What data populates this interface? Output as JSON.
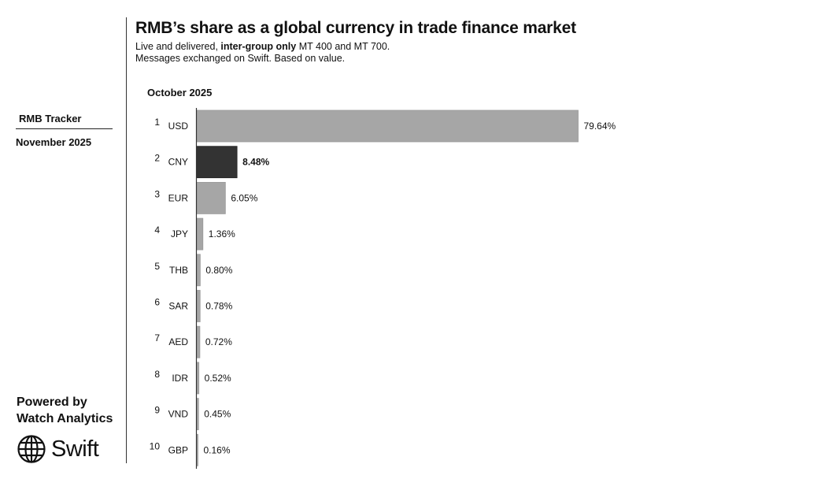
{
  "sidebar": {
    "tracker_label": "RMB Tracker",
    "date_label": "November 2025",
    "powered_line1": "Powered by",
    "powered_line2": "Watch Analytics",
    "logo_text": "Swift"
  },
  "colors": {
    "bar_default": "#a6a6a6",
    "bar_highlight": "#333333",
    "axis": "#333333"
  },
  "chart_data": {
    "type": "bar",
    "orientation": "horizontal",
    "title": "RMB’s share as a global currency in trade finance market",
    "subtitle_line1_pre": "Live and delivered, ",
    "subtitle_line1_bold": "inter-group only",
    "subtitle_line1_post": " MT 400 and MT 700.",
    "subtitle_line2": "Messages exchanged on Swift. Based on value.",
    "period": "October 2025",
    "ranks": [
      "1",
      "2",
      "3",
      "4",
      "5",
      "6",
      "7",
      "8",
      "9",
      "10"
    ],
    "categories": [
      "USD",
      "CNY",
      "EUR",
      "JPY",
      "THB",
      "SAR",
      "AED",
      "IDR",
      "VND",
      "GBP"
    ],
    "values": [
      79.64,
      8.48,
      6.05,
      1.36,
      0.8,
      0.78,
      0.72,
      0.52,
      0.45,
      0.16
    ],
    "value_labels": [
      "79.64%",
      "8.48%",
      "6.05%",
      "1.36%",
      "0.80%",
      "0.78%",
      "0.72%",
      "0.52%",
      "0.45%",
      "0.16%"
    ],
    "highlight": "CNY",
    "unit": "%",
    "xlim": [
      0,
      79.64
    ],
    "grid": false
  }
}
